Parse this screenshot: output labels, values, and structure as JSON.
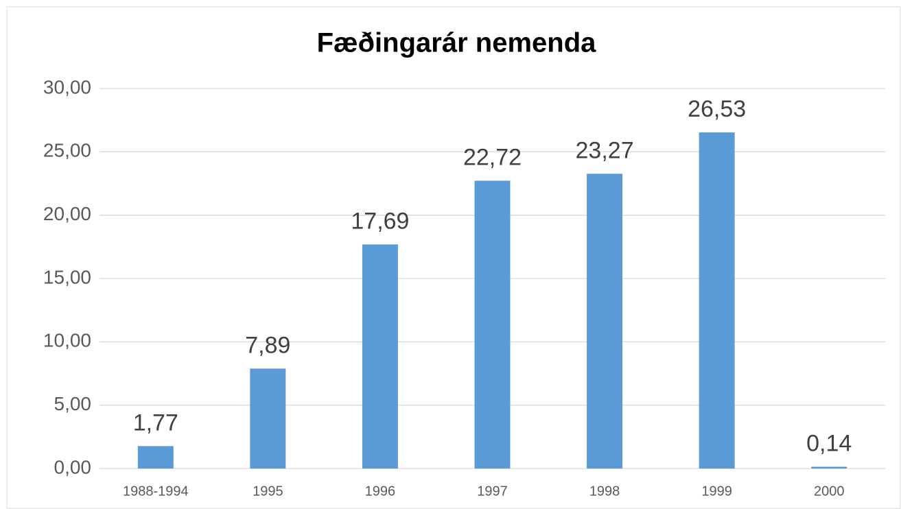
{
  "chart_data": {
    "type": "bar",
    "title": "Fæðingarár nemenda",
    "categories": [
      "1988-1994",
      "1995",
      "1996",
      "1997",
      "1998",
      "1999",
      "2000"
    ],
    "values": [
      1.77,
      7.89,
      17.69,
      22.72,
      23.27,
      26.53,
      0.14
    ],
    "value_labels": [
      "1,77",
      "7,89",
      "17,69",
      "22,72",
      "23,27",
      "26,53",
      "0,14"
    ],
    "color": "#5b9bd5",
    "ylim": [
      0,
      30
    ],
    "yticks": [
      {
        "value": 0,
        "label": "0,00"
      },
      {
        "value": 5,
        "label": "5,00"
      },
      {
        "value": 10,
        "label": "10,00"
      },
      {
        "value": 15,
        "label": "15,00"
      },
      {
        "value": 20,
        "label": "20,00"
      },
      {
        "value": 25,
        "label": "25,00"
      },
      {
        "value": 30,
        "label": "30,00"
      }
    ],
    "grid": true
  }
}
